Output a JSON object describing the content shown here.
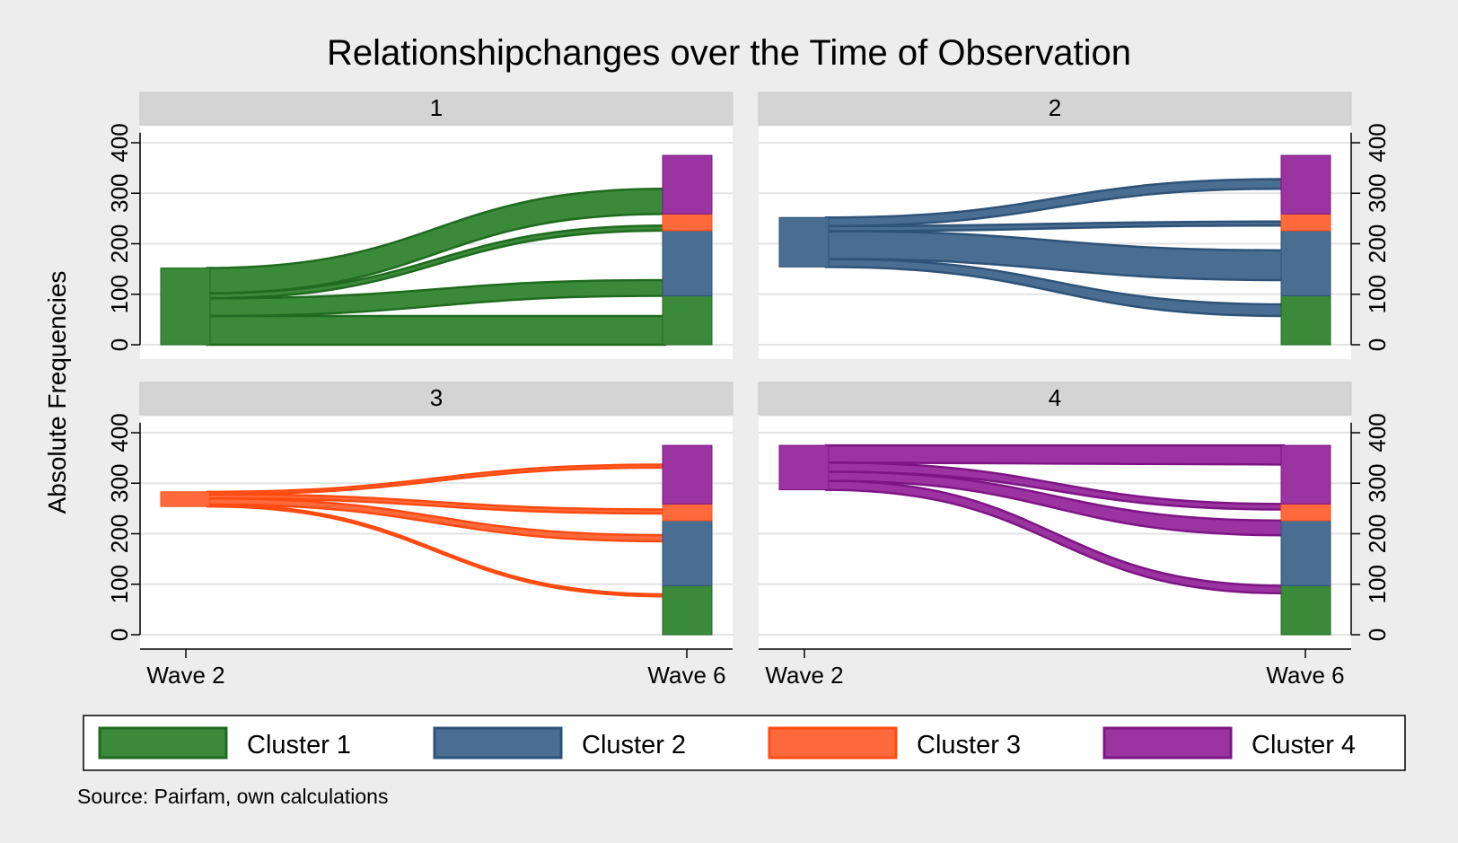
{
  "title": "Relationshipchanges over the Time of Observation",
  "ylabel": "Absolute Frequencies",
  "source": "Source: Pairfam, own calculations",
  "colors": {
    "background": "#ededed",
    "panel": "#ffffff",
    "strip": "#d4d4d4",
    "grid": "#e3e3e3",
    "cluster_fill": [
      "#3a8a3a",
      "#4a6e91",
      "#ff6a3d",
      "#9b34a0"
    ],
    "cluster_stroke": [
      "#1f6b1f",
      "#2e5378",
      "#ff4a10",
      "#7d1585"
    ]
  },
  "legend": [
    {
      "label": "Cluster 1"
    },
    {
      "label": "Cluster 2"
    },
    {
      "label": "Cluster 3"
    },
    {
      "label": "Cluster 4"
    }
  ],
  "chart_data": {
    "type": "area",
    "x_ticks": [
      "Wave 2",
      "Wave 6"
    ],
    "y_ticks": [
      0,
      100,
      200,
      300,
      400
    ],
    "ylim": [
      0,
      420
    ],
    "grid": true,
    "legend_placement": "bottom",
    "wave6_stack": [
      {
        "cluster": 1,
        "from": 0,
        "to": 97
      },
      {
        "cluster": 2,
        "from": 97,
        "to": 226
      },
      {
        "cluster": 3,
        "from": 226,
        "to": 259
      },
      {
        "cluster": 4,
        "from": 259,
        "to": 375
      }
    ],
    "panels": [
      {
        "label": "1",
        "cluster": 1,
        "wave2_bar": [
          0,
          152
        ],
        "flows": [
          {
            "to_cluster": 1,
            "wave2": [
              0,
              57
            ],
            "wave6": [
              0,
              57
            ]
          },
          {
            "to_cluster": 2,
            "wave2": [
              57,
              92
            ],
            "wave6": [
              97,
              128
            ]
          },
          {
            "to_cluster": 3,
            "wave2": [
              92,
              102
            ],
            "wave6": [
              226,
              236
            ]
          },
          {
            "to_cluster": 4,
            "wave2": [
              102,
              152
            ],
            "wave6": [
              259,
              309
            ]
          }
        ]
      },
      {
        "label": "2",
        "cluster": 2,
        "wave2_bar": [
          154,
          252
        ],
        "flows": [
          {
            "to_cluster": 1,
            "wave2": [
              154,
              170
            ],
            "wave6": [
              57,
              80
            ]
          },
          {
            "to_cluster": 2,
            "wave2": [
              170,
              225
            ],
            "wave6": [
              128,
              187
            ]
          },
          {
            "to_cluster": 3,
            "wave2": [
              225,
              235
            ],
            "wave6": [
              236,
              244
            ]
          },
          {
            "to_cluster": 4,
            "wave2": [
              235,
              252
            ],
            "wave6": [
              309,
              328
            ]
          }
        ]
      },
      {
        "label": "3",
        "cluster": 3,
        "wave2_bar": [
          254,
          283
        ],
        "flows": [
          {
            "to_cluster": 1,
            "wave2": [
              254,
              258
            ],
            "wave6": [
              76,
              80
            ]
          },
          {
            "to_cluster": 2,
            "wave2": [
              258,
              270
            ],
            "wave6": [
              185,
              197
            ]
          },
          {
            "to_cluster": 3,
            "wave2": [
              270,
              278
            ],
            "wave6": [
              240,
              248
            ]
          },
          {
            "to_cluster": 4,
            "wave2": [
              278,
              283
            ],
            "wave6": [
              331,
              337
            ]
          }
        ]
      },
      {
        "label": "4",
        "cluster": 4,
        "wave2_bar": [
          287,
          375
        ],
        "flows": [
          {
            "to_cluster": 1,
            "wave2": [
              287,
              305
            ],
            "wave6": [
              82,
              97
            ]
          },
          {
            "to_cluster": 2,
            "wave2": [
              305,
              323
            ],
            "wave6": [
              197,
              226
            ]
          },
          {
            "to_cluster": 3,
            "wave2": [
              323,
              341
            ],
            "wave6": [
              248,
              259
            ]
          },
          {
            "to_cluster": 4,
            "wave2": [
              341,
              375
            ],
            "wave6": [
              337,
              375
            ]
          }
        ]
      }
    ]
  }
}
